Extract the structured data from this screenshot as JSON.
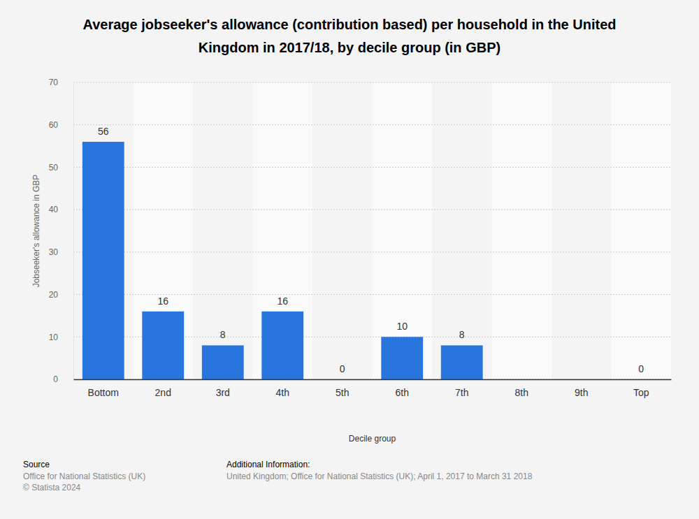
{
  "chart_data": {
    "type": "bar",
    "title": "Average jobseeker's allowance (contribution based) per household in the United Kingdom in 2017/18, by decile group (in GBP)",
    "x_label": "Decile group",
    "y_label": "Jobseeker's allowance in GBP",
    "categories": [
      "Bottom",
      "2nd",
      "3rd",
      "4th",
      "5th",
      "6th",
      "7th",
      "8th",
      "9th",
      "Top"
    ],
    "values": [
      56,
      16,
      8,
      16,
      0,
      10,
      8,
      null,
      null,
      0
    ],
    "color": "#2876dd",
    "ylim": [
      0,
      70
    ],
    "yticks": [
      0,
      10,
      20,
      30,
      40,
      50,
      60,
      70
    ],
    "grid": true,
    "data_labels": true
  },
  "footer": {
    "source_label": "Source",
    "source": "Office for National Statistics (UK)",
    "copyright": "© Statista 2024",
    "info_label": "Additional Information:",
    "info": "United Kingdom; Office for National Statistics (UK); April 1, 2017 to March 31 2018"
  }
}
